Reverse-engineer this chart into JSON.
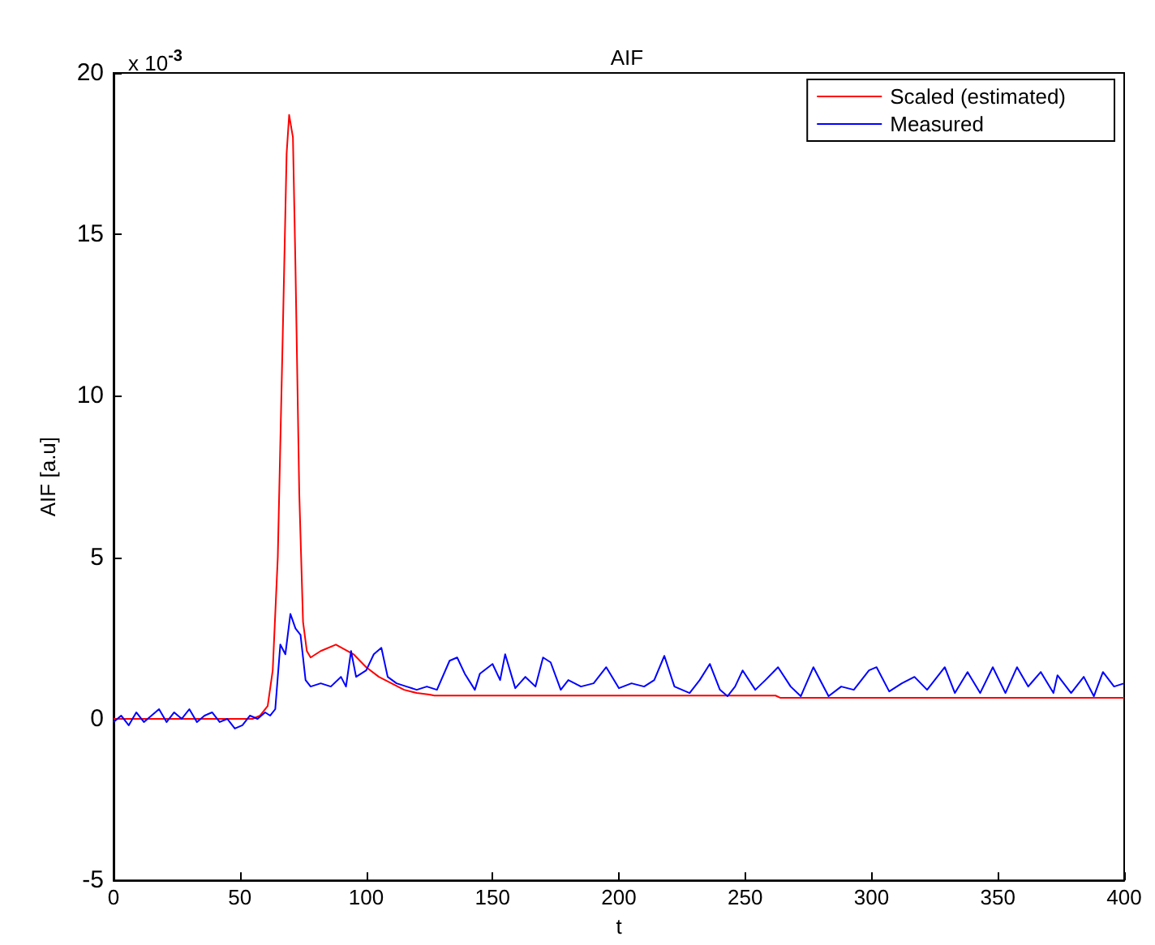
{
  "chart_data": {
    "type": "line",
    "title": "AIF",
    "xlabel": "t",
    "ylabel": "AIF [a.u]",
    "annotations": [
      "x 10$^{-3}$"
    ],
    "xlim": [
      0,
      400
    ],
    "xticks": [
      0,
      50,
      100,
      150,
      200,
      250,
      300,
      350,
      400
    ],
    "ylim": [
      -5,
      20
    ],
    "yticks": [
      -5,
      0,
      5,
      10,
      15,
      20
    ],
    "grid": false,
    "legend": "top right",
    "marker": "none",
    "line_style": "solid",
    "series": [
      {
        "name": "Scaled (estimated)",
        "color": "#ff0000",
        "x": [
          0,
          20,
          40,
          55,
          58,
          61,
          63,
          65,
          67,
          68.5,
          69.5,
          71,
          72,
          73.5,
          75,
          76.5,
          78,
          82,
          88,
          95,
          100,
          105,
          110,
          115,
          120,
          125,
          127,
          180,
          262,
          264,
          330,
          400
        ],
        "values": [
          0,
          0,
          0,
          0,
          0.1,
          0.4,
          1.5,
          5,
          12,
          17.5,
          18.7,
          18.0,
          14,
          7,
          3,
          2.1,
          1.9,
          2.1,
          2.3,
          2.0,
          1.6,
          1.3,
          1.1,
          0.9,
          0.8,
          0.75,
          0.72,
          0.72,
          0.72,
          0.65,
          0.65,
          0.65
        ]
      },
      {
        "name": "Measured",
        "color": "#0000ff",
        "x": [
          0,
          3,
          6,
          9,
          12,
          15,
          18,
          21,
          24,
          27,
          30,
          33,
          36,
          39,
          42,
          45,
          48,
          51,
          54,
          57,
          60,
          62,
          64,
          66,
          68,
          70,
          72,
          74,
          76,
          78,
          82,
          86,
          90,
          92,
          94,
          96,
          100,
          103,
          106,
          108.5,
          112,
          116,
          120,
          124,
          128,
          133,
          136,
          139,
          143,
          145,
          150,
          153,
          155,
          159,
          163,
          167,
          170,
          173,
          177,
          180,
          185,
          190,
          195,
          200,
          205,
          210,
          214,
          218,
          222,
          225,
          228,
          232,
          236,
          240,
          243,
          246,
          249,
          254,
          258,
          263,
          268,
          272,
          277,
          283,
          288,
          293,
          299,
          302,
          307,
          312,
          317,
          322,
          329,
          333,
          338,
          343,
          348,
          353,
          357.6,
          362,
          367,
          372,
          373.6,
          379,
          384,
          388,
          391.6,
          396,
          400
        ],
        "values": [
          -0.1,
          0.1,
          -0.2,
          0.2,
          -0.1,
          0.1,
          0.3,
          -0.1,
          0.2,
          0,
          0.3,
          -0.1,
          0.1,
          0.2,
          -0.1,
          0,
          -0.3,
          -0.2,
          0.1,
          0,
          0.2,
          0.1,
          0.3,
          2.3,
          2.0,
          3.25,
          2.8,
          2.6,
          1.2,
          1.0,
          1.1,
          1.0,
          1.3,
          1.0,
          2.1,
          1.3,
          1.5,
          2.0,
          2.2,
          1.3,
          1.1,
          1.0,
          0.9,
          1.0,
          0.9,
          1.8,
          1.9,
          1.4,
          0.9,
          1.4,
          1.7,
          1.2,
          2.0,
          0.95,
          1.3,
          1.0,
          1.9,
          1.75,
          0.9,
          1.2,
          1.0,
          1.1,
          1.6,
          0.95,
          1.1,
          1.0,
          1.2,
          1.95,
          1.0,
          0.9,
          0.8,
          1.2,
          1.7,
          0.9,
          0.7,
          1.0,
          1.5,
          0.9,
          1.2,
          1.6,
          1.0,
          0.7,
          1.6,
          0.7,
          1.0,
          0.9,
          1.5,
          1.6,
          0.85,
          1.1,
          1.3,
          0.9,
          1.6,
          0.8,
          1.45,
          0.8,
          1.6,
          0.8,
          1.6,
          1.0,
          1.45,
          0.8,
          1.35,
          0.8,
          1.3,
          0.7,
          1.45,
          1.0,
          1.1
        ]
      }
    ]
  }
}
